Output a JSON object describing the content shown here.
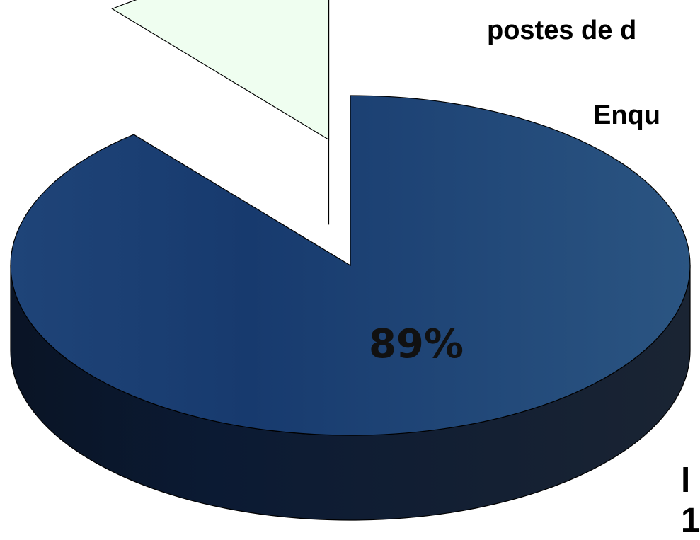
{
  "chart_data": {
    "type": "pie",
    "style": "3d-exploded",
    "title_lines": [
      "postes de d",
      "Enqu"
    ],
    "corner_text": [
      "l",
      "1"
    ],
    "slices": [
      {
        "label": "",
        "value": 89,
        "display": "89%",
        "color": "#234a7a"
      },
      {
        "label": "",
        "value": 11,
        "display": "",
        "color": "#effef0"
      }
    ],
    "legend": "none",
    "grid": false
  }
}
